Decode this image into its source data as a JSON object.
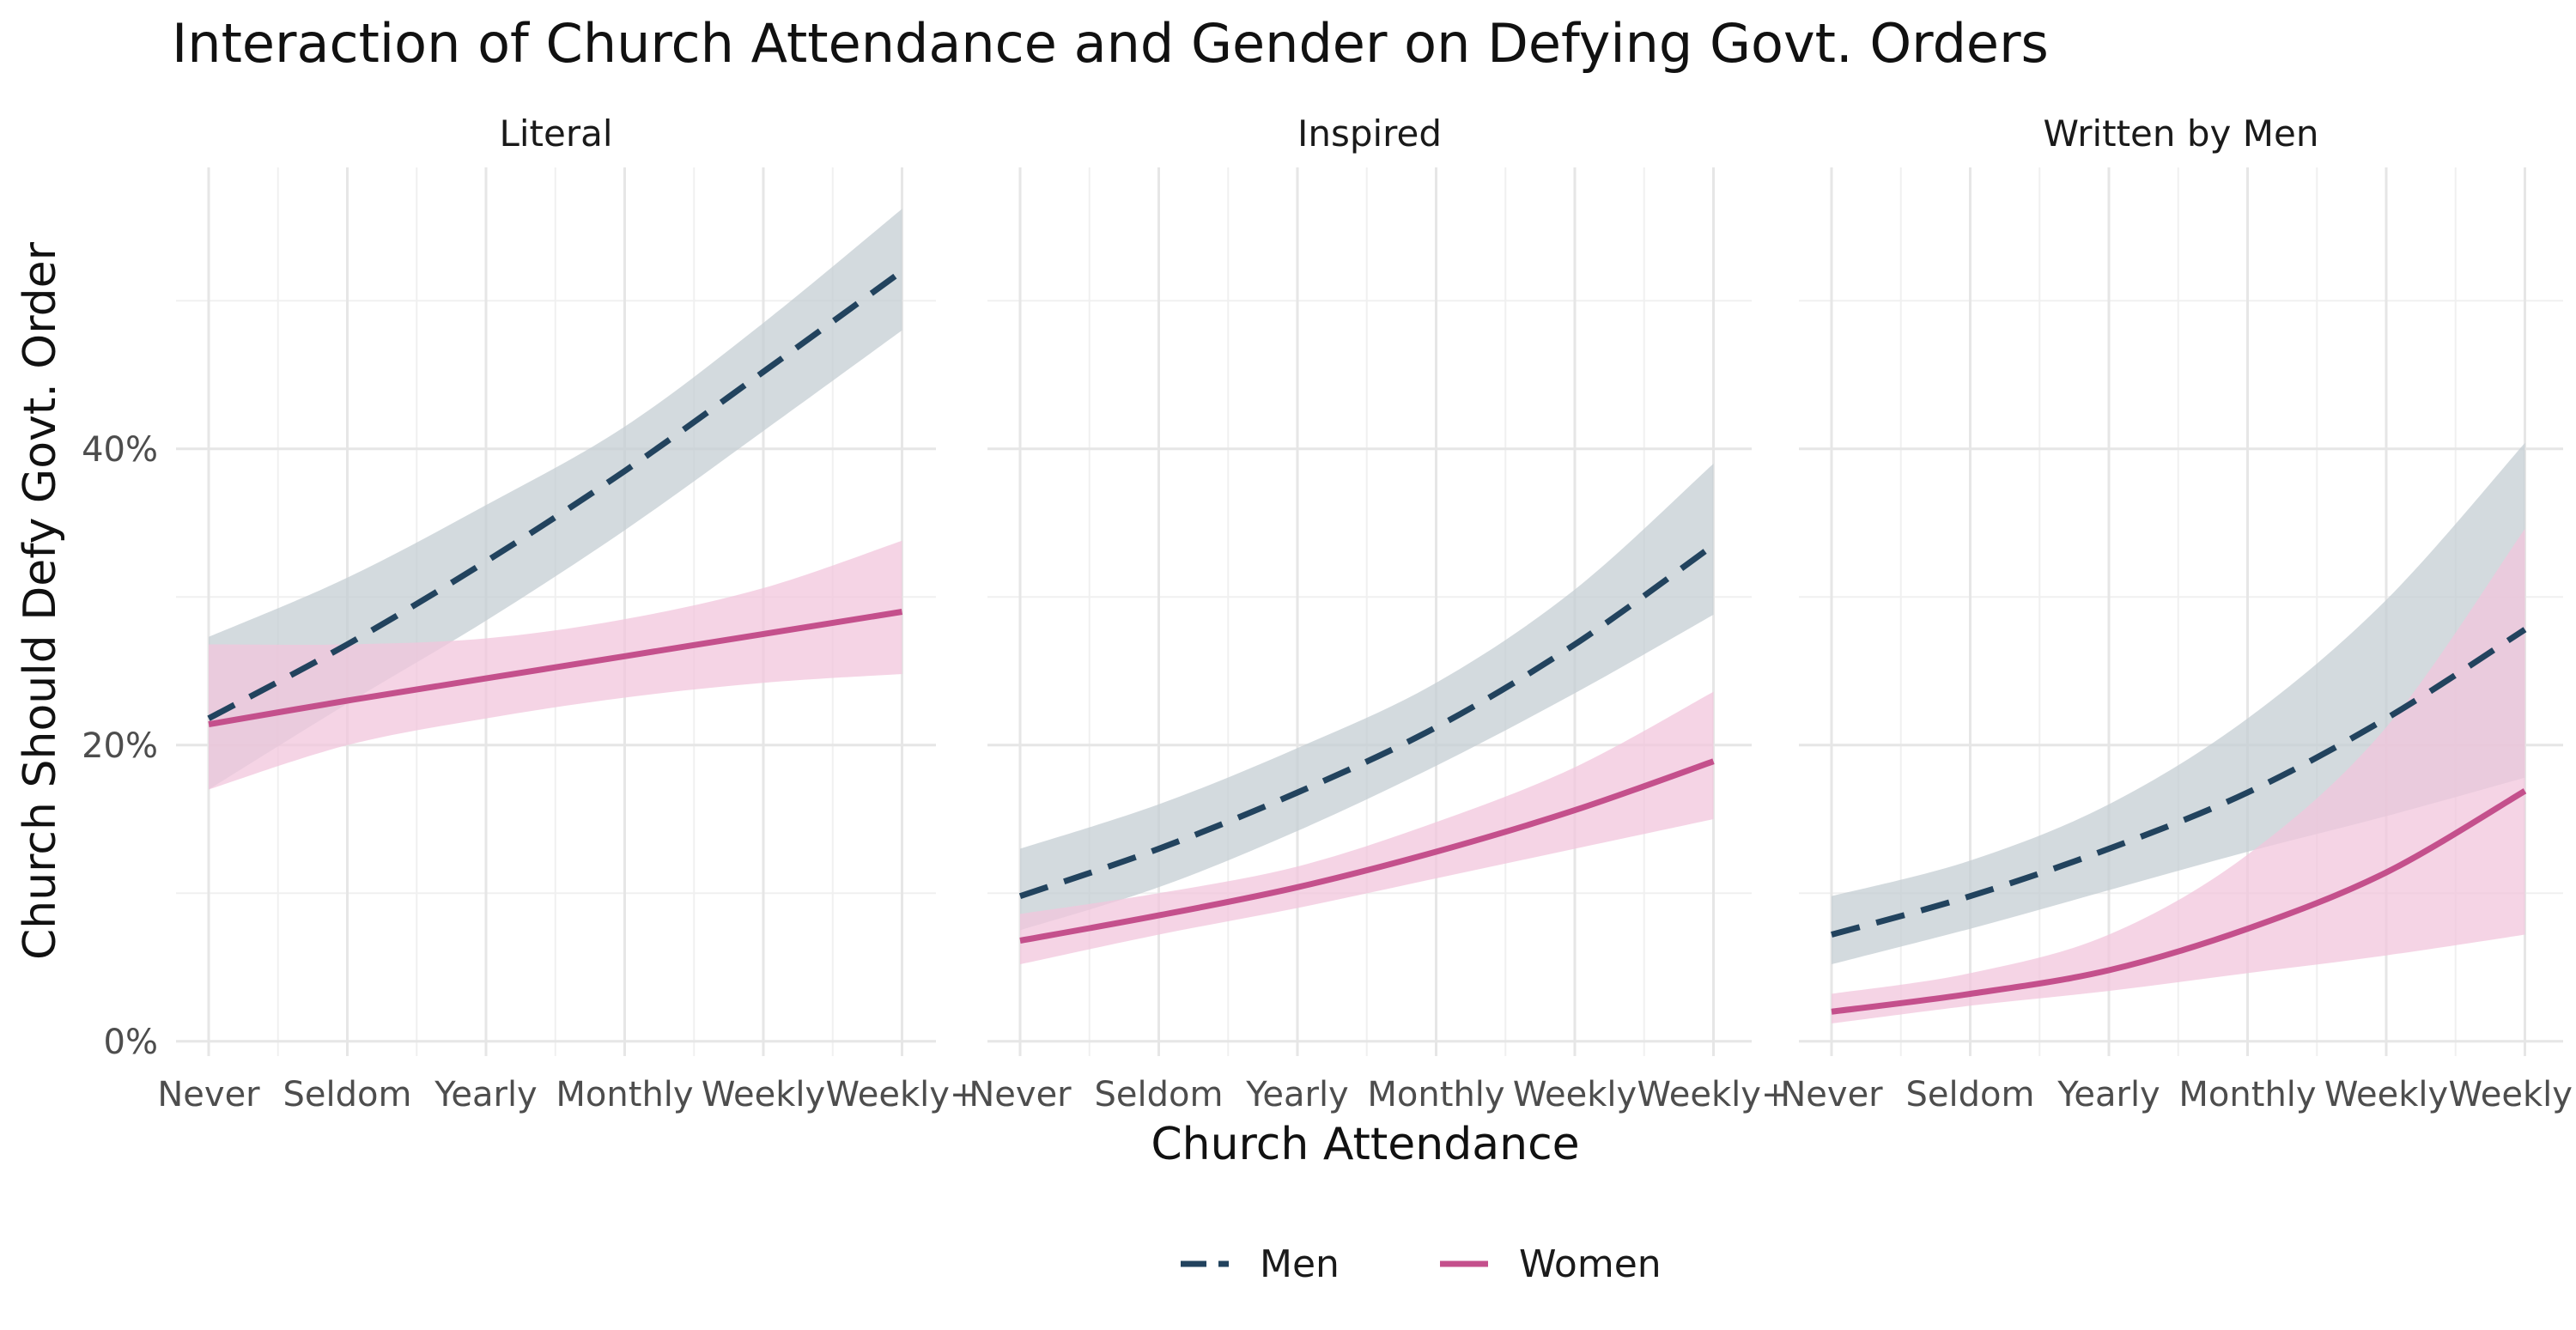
{
  "chart_data": {
    "type": "line",
    "title": "Interaction of Church Attendance and Gender on Defying Govt. Orders",
    "xlabel": "Church Attendance",
    "ylabel": "Church Should Defy Govt. Order",
    "categories": [
      "Never",
      "Seldom",
      "Yearly",
      "Monthly",
      "Weekly",
      "Weekly+"
    ],
    "y_ticks": [
      "0%",
      "20%",
      "40%"
    ],
    "y_tick_values": [
      0,
      20,
      40
    ],
    "ylim": [
      -1,
      59
    ],
    "grid": true,
    "legend_position": "bottom",
    "legend": [
      {
        "name": "Men",
        "color": "#22435e",
        "dash": "dashed"
      },
      {
        "name": "Women",
        "color": "#c4508c",
        "dash": "solid"
      }
    ],
    "band_colors": {
      "Men": "#c4cdd3",
      "Women": "#f1c6dc"
    },
    "panels": [
      {
        "label": "Literal",
        "series": [
          {
            "name": "Men",
            "values": [
              21.8,
              26.8,
              32.4,
              38.5,
              45.2,
              52.0
            ],
            "lower": [
              17.0,
              22.8,
              28.4,
              34.5,
              41.2,
              48.0
            ],
            "upper": [
              27.3,
              31.3,
              36.2,
              41.5,
              48.5,
              56.2
            ]
          },
          {
            "name": "Women",
            "values": [
              21.4,
              23.0,
              24.5,
              26.0,
              27.5,
              29.0
            ],
            "lower": [
              17.0,
              20.0,
              21.8,
              23.2,
              24.2,
              24.8
            ],
            "upper": [
              26.8,
              26.8,
              27.2,
              28.5,
              30.6,
              33.8
            ]
          }
        ]
      },
      {
        "label": "Inspired",
        "series": [
          {
            "name": "Men",
            "values": [
              9.8,
              13.0,
              16.8,
              21.2,
              26.8,
              33.5
            ],
            "lower": [
              7.5,
              10.4,
              14.2,
              18.6,
              23.5,
              28.8
            ],
            "upper": [
              13.0,
              16.0,
              19.8,
              24.2,
              30.5,
              39.0
            ]
          },
          {
            "name": "Women",
            "values": [
              6.8,
              8.5,
              10.4,
              12.8,
              15.6,
              18.9
            ],
            "lower": [
              5.2,
              7.2,
              9.0,
              11.0,
              13.0,
              15.0
            ],
            "upper": [
              8.6,
              10.0,
              11.8,
              14.8,
              18.5,
              23.6
            ]
          }
        ]
      },
      {
        "label": "Written by Men",
        "series": [
          {
            "name": "Men",
            "values": [
              7.2,
              9.8,
              13.0,
              16.8,
              21.8,
              27.8
            ],
            "lower": [
              5.2,
              7.6,
              10.2,
              12.8,
              15.2,
              17.8
            ],
            "upper": [
              9.8,
              12.2,
              16.0,
              21.8,
              29.8,
              40.4
            ]
          },
          {
            "name": "Women",
            "values": [
              2.0,
              3.2,
              4.8,
              7.6,
              11.4,
              16.9
            ],
            "lower": [
              1.2,
              2.4,
              3.4,
              4.6,
              5.8,
              7.2
            ],
            "upper": [
              3.2,
              4.6,
              7.2,
              12.6,
              21.2,
              34.6
            ]
          }
        ]
      }
    ]
  }
}
